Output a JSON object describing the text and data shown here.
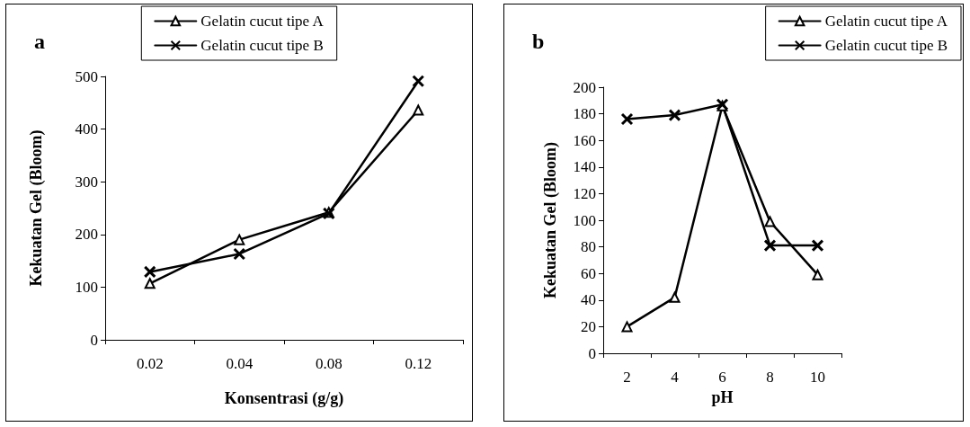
{
  "chart_data": [
    {
      "type": "line",
      "title": "a",
      "xlabel": "Konsentrasi (g/g)",
      "ylabel": "Kekuatan Gel (Bloom)",
      "categories": [
        "0.02",
        "0.04",
        "0.08",
        "0.12"
      ],
      "series": [
        {
          "name": "Gelatin cucut tipe A",
          "color": "#000000",
          "marker": "triangle",
          "values": [
            107,
            190,
            242,
            436
          ]
        },
        {
          "name": "Gelatin cucut tipe B",
          "color": "#000000",
          "marker": "cross",
          "values": [
            129,
            163,
            240,
            491
          ]
        }
      ],
      "ylim": [
        0,
        500
      ],
      "yticks": [
        0,
        100,
        200,
        300,
        400,
        500
      ],
      "grid": false,
      "legend": "top",
      "line_style": "solid"
    },
    {
      "type": "line",
      "title": "b",
      "xlabel": "pH",
      "ylabel": "Kekuatan Gel (Bloom)",
      "categories": [
        "2",
        "4",
        "6",
        "8",
        "10"
      ],
      "series": [
        {
          "name": "Gelatin cucut tipe A",
          "color": "#000000",
          "marker": "triangle",
          "values": [
            20,
            42,
            186,
            99,
            59
          ]
        },
        {
          "name": "Gelatin cucut tipe B",
          "color": "#000000",
          "marker": "cross",
          "values": [
            176,
            179,
            187,
            81,
            81
          ]
        }
      ],
      "ylim": [
        0,
        200
      ],
      "yticks": [
        0,
        20,
        40,
        60,
        80,
        100,
        120,
        140,
        160,
        180,
        200
      ],
      "grid": false,
      "legend": "top right",
      "line_style": "solid"
    }
  ]
}
